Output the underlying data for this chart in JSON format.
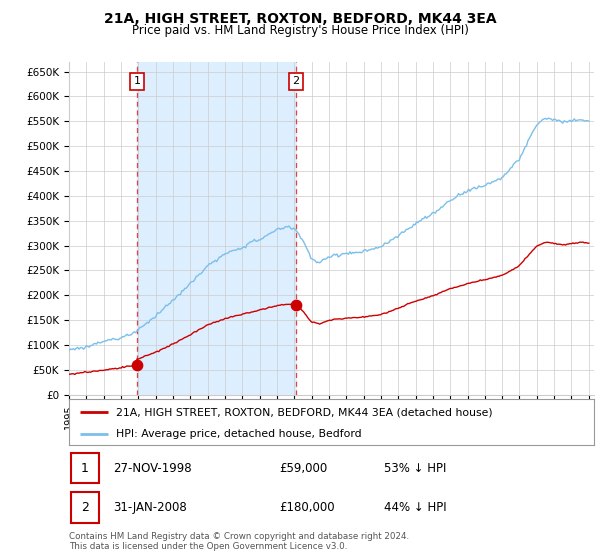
{
  "title": "21A, HIGH STREET, ROXTON, BEDFORD, MK44 3EA",
  "subtitle": "Price paid vs. HM Land Registry's House Price Index (HPI)",
  "ylabel_ticks": [
    "£0",
    "£50K",
    "£100K",
    "£150K",
    "£200K",
    "£250K",
    "£300K",
    "£350K",
    "£400K",
    "£450K",
    "£500K",
    "£550K",
    "£600K",
    "£650K"
  ],
  "ytick_values": [
    0,
    50000,
    100000,
    150000,
    200000,
    250000,
    300000,
    350000,
    400000,
    450000,
    500000,
    550000,
    600000,
    650000
  ],
  "hpi_color": "#7bbfea",
  "hpi_fill_color": "#ddeeff",
  "price_color": "#cc0000",
  "dashed_color": "#dd4444",
  "sale1_x": 1998.91,
  "sale1_price": 59000,
  "sale2_x": 2008.08,
  "sale2_price": 180000,
  "legend_line1": "21A, HIGH STREET, ROXTON, BEDFORD, MK44 3EA (detached house)",
  "legend_line2": "HPI: Average price, detached house, Bedford",
  "annotation1_text": "27-NOV-1998",
  "annotation1_price": "£59,000",
  "annotation1_hpi": "53% ↓ HPI",
  "annotation2_text": "31-JAN-2008",
  "annotation2_price": "£180,000",
  "annotation2_hpi": "44% ↓ HPI",
  "footnote": "Contains HM Land Registry data © Crown copyright and database right 2024.\nThis data is licensed under the Open Government Licence v3.0.",
  "background_color": "#ffffff",
  "grid_color": "#cccccc",
  "xlim_left": 1995.0,
  "xlim_right": 2025.3,
  "ylim_top": 670000
}
